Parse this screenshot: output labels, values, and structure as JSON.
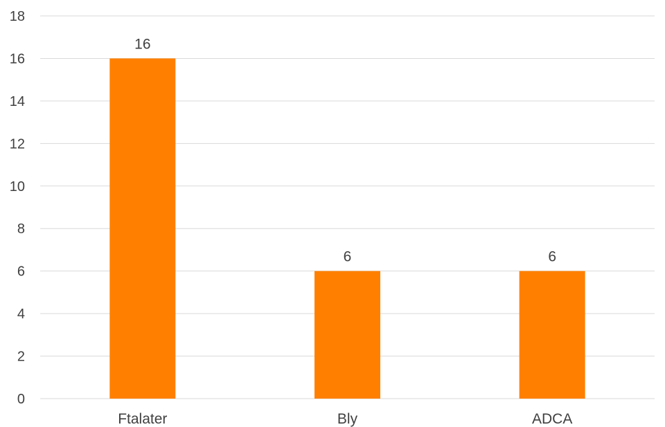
{
  "chart_data": {
    "type": "bar",
    "title": "",
    "xlabel": "",
    "ylabel": "",
    "categories": [
      "Ftalater",
      "Bly",
      "ADCA"
    ],
    "values": [
      16,
      6,
      6
    ],
    "data_labels": [
      "16",
      "6",
      "6"
    ],
    "ylim": [
      0,
      18
    ],
    "yticks": [
      0,
      2,
      4,
      6,
      8,
      10,
      12,
      14,
      16,
      18
    ],
    "grid": true,
    "legend": "none",
    "bar_color": "#ff8000"
  }
}
